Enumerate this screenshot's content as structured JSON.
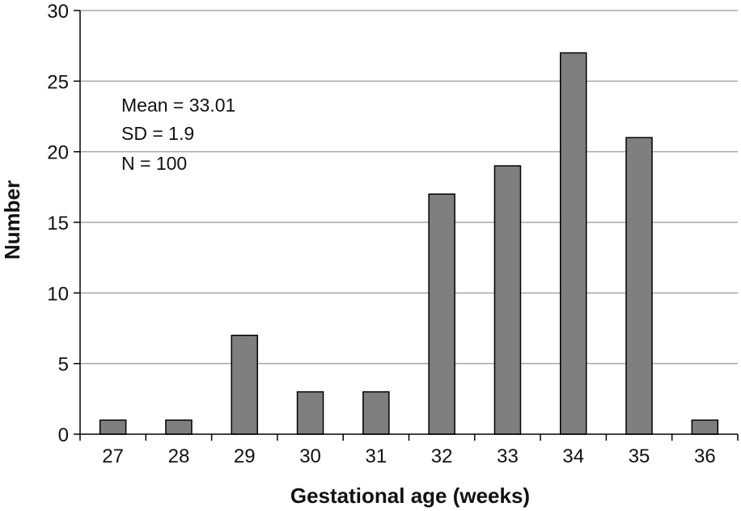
{
  "chart_data": {
    "type": "bar",
    "title": "",
    "xlabel": "Gestational age (weeks)",
    "ylabel": "Number",
    "categories": [
      "27",
      "28",
      "29",
      "30",
      "31",
      "32",
      "33",
      "34",
      "35",
      "36"
    ],
    "values": [
      1,
      1,
      7,
      3,
      3,
      17,
      19,
      27,
      21,
      1
    ],
    "ylim": [
      0,
      30
    ],
    "yticks": [
      "0",
      "5",
      "10",
      "15",
      "20",
      "25",
      "30"
    ],
    "grid": true,
    "legend": "none",
    "bar_color": "#7f7f7f",
    "bar_edge_color": "#000000",
    "grid_color": "#a6a6a6",
    "annotations": [
      "Mean = 33.01",
      "SD = 1.9",
      "N = 100"
    ]
  }
}
